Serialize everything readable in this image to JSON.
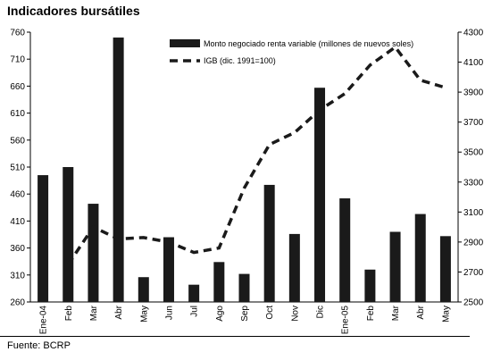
{
  "title": "Indicadores bursátiles",
  "source": "Fuente: BCRP",
  "chart_data": {
    "type": "bar",
    "categories": [
      "Ene-04",
      "Feb",
      "Mar",
      "Abr",
      "May",
      "Jun",
      "Jul",
      "Ago",
      "Sep",
      "Oct",
      "Nov",
      "Dic",
      "Ene-05",
      "Feb",
      "Mar",
      "Abr",
      "May"
    ],
    "series": [
      {
        "name": "Monto negociado renta variable (millones de nuevos soles)",
        "type": "bar",
        "axis": "left",
        "color": "#1a1a1a",
        "values": [
          495,
          510,
          442,
          750,
          306,
          380,
          292,
          334,
          312,
          477,
          386,
          657,
          452,
          320,
          390,
          423,
          382
        ]
      },
      {
        "name": "IGB (dic. 1991=100)",
        "type": "line",
        "style": "dashed",
        "axis": "right",
        "color": "#1a1a1a",
        "values": [
          null,
          2750,
          3000,
          2920,
          2930,
          2900,
          2830,
          2860,
          3260,
          3550,
          3630,
          3780,
          3890,
          4080,
          4200,
          3980,
          3930
        ]
      }
    ],
    "yaxis_left": {
      "ylim": [
        260,
        760
      ],
      "ticks": [
        260,
        310,
        360,
        410,
        460,
        510,
        560,
        610,
        660,
        710,
        760
      ]
    },
    "yaxis_right": {
      "ylim": [
        2500,
        4300
      ],
      "ticks": [
        2500,
        2700,
        2900,
        3100,
        3300,
        3500,
        3700,
        3900,
        4100,
        4300
      ]
    },
    "xlabel": "",
    "grid": false,
    "legend_position": "top-center"
  }
}
